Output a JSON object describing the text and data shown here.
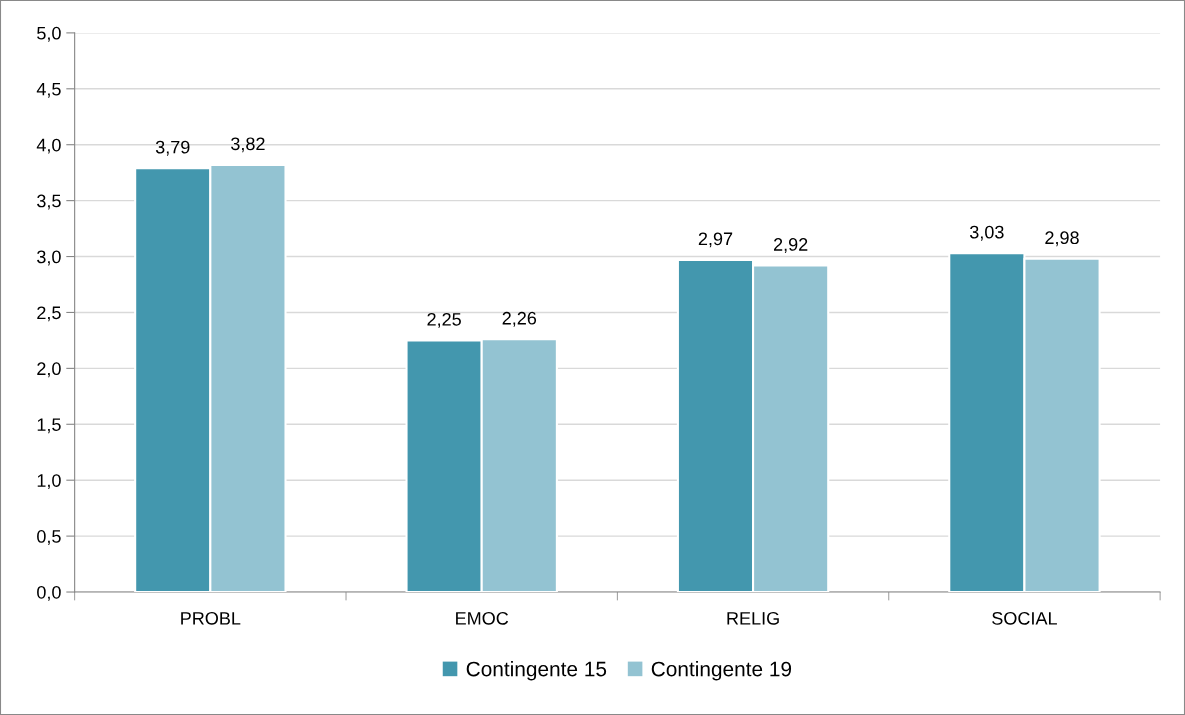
{
  "chart_data": {
    "type": "bar",
    "categories": [
      "PROBL",
      "EMOC",
      "RELIG",
      "SOCIAL"
    ],
    "series": [
      {
        "name": "Contingente 15",
        "color": "#4397ae",
        "values": [
          3.79,
          2.25,
          2.97,
          3.03
        ],
        "value_labels": [
          "3,79",
          "2,25",
          "2,97",
          "3,03"
        ]
      },
      {
        "name": "Contingente 19",
        "color": "#93c3d2",
        "values": [
          3.82,
          2.26,
          2.92,
          2.98
        ],
        "value_labels": [
          "3,82",
          "2,26",
          "2,92",
          "2,98"
        ]
      }
    ],
    "ylim": [
      0,
      5
    ],
    "yticks": [
      {
        "value": 0,
        "label": "0,0"
      },
      {
        "value": 0.5,
        "label": "0,5"
      },
      {
        "value": 1,
        "label": "1,0"
      },
      {
        "value": 1.5,
        "label": "1,5"
      },
      {
        "value": 2,
        "label": "2,0"
      },
      {
        "value": 2.5,
        "label": "2,5"
      },
      {
        "value": 3,
        "label": "3,0"
      },
      {
        "value": 3.5,
        "label": "3,5"
      },
      {
        "value": 4,
        "label": "4,0"
      },
      {
        "value": 4.5,
        "label": "4,5"
      },
      {
        "value": 5,
        "label": "5,0"
      }
    ],
    "grid": "y",
    "legend": "bottom"
  }
}
